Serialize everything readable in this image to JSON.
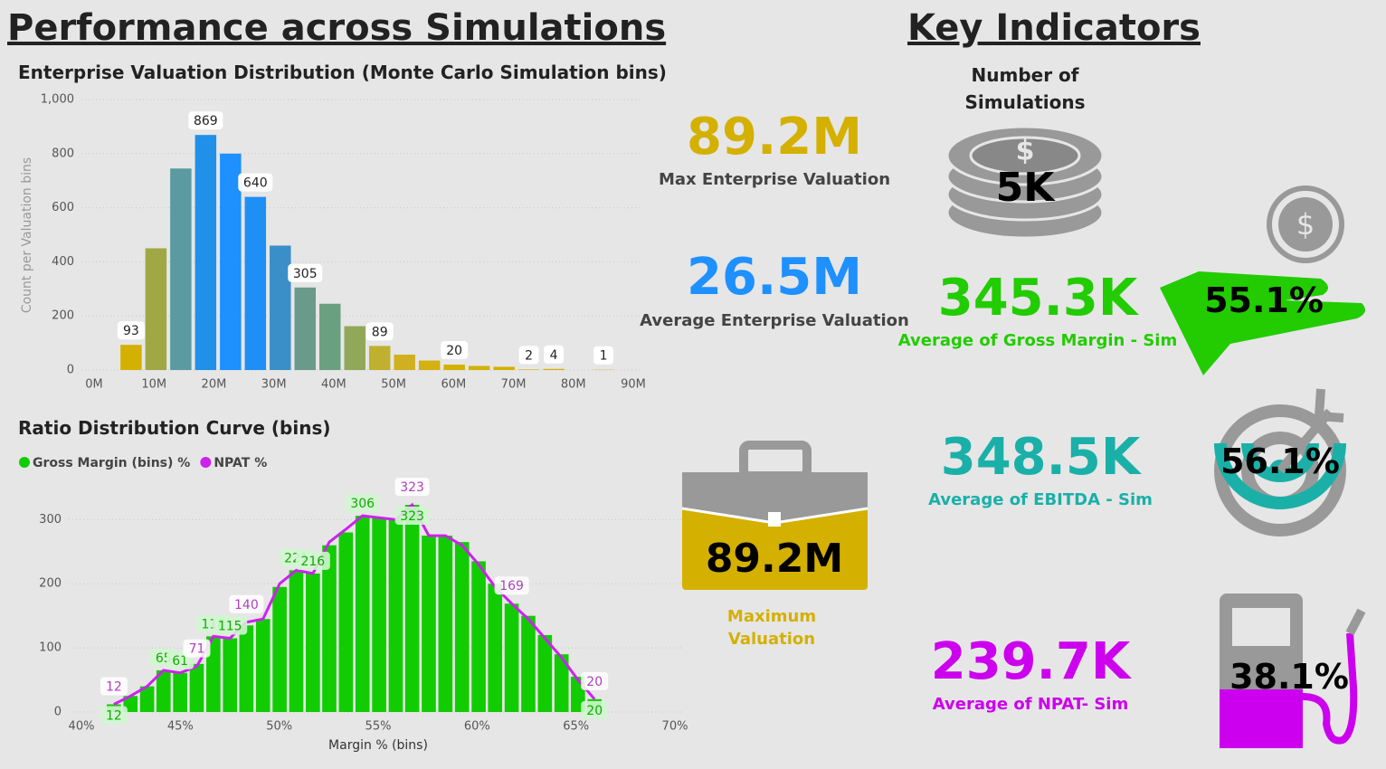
{
  "header": {
    "left_title": "Performance across Simulations",
    "right_title": "Key Indicators"
  },
  "kpis": {
    "max_ev": {
      "value": "89.2M",
      "label": "Max Enterprise Valuation"
    },
    "avg_ev": {
      "value": "26.5M",
      "label": "Average Enterprise Valuation"
    },
    "max_valuation": {
      "value": "89.2M",
      "label": "Maximum Valuation"
    },
    "simulations": {
      "label": "Number of Simulations",
      "value": "5K"
    },
    "gross_margin": {
      "value": "345.3K",
      "label": "Average of Gross Margin - Sim",
      "percent": "55.1%"
    },
    "ebitda": {
      "value": "348.5K",
      "label": "Average of EBITDA - Sim",
      "percent": "56.1%"
    },
    "npat": {
      "value": "239.7K",
      "label": "Average of NPAT- Sim",
      "percent": "38.1%"
    }
  },
  "chart_data": [
    {
      "type": "histogram",
      "title": "Enterprise Valuation Distribution (Monte Carlo Simulation bins)",
      "y_label": "Count per Valuation bins",
      "bins": [
        4.1,
        8.25,
        12.4,
        16.55,
        20.7,
        24.85,
        29,
        33.15,
        37.3,
        41.45,
        45.6,
        49.75,
        53.9,
        58.05,
        62.2,
        66.35,
        70.5,
        74.65,
        78.8,
        82.95,
        87.1
      ],
      "values": [
        93,
        450,
        745,
        869,
        800,
        640,
        460,
        305,
        245,
        162,
        89,
        57,
        35,
        20,
        15,
        12,
        2,
        4,
        0,
        1
      ],
      "value_labels": [
        "93",
        null,
        null,
        "869",
        null,
        "640",
        null,
        "305",
        null,
        null,
        "89",
        null,
        null,
        "20",
        null,
        null,
        "2",
        "4",
        null,
        "1"
      ],
      "colors": [
        "#d4b000",
        "#a0a845",
        "#5a9aa0",
        "#2090e8",
        "#1e90ff",
        "#1e8ff5",
        "#3a8fc8",
        "#6a9a8a",
        "#6aa080",
        "#90a858",
        "#c0b030",
        "#d0b020",
        "#d4b010",
        "#d4b000",
        "#d4b000",
        "#d4b000",
        "#d4b000",
        "#d4b000",
        "#d4b000",
        "#d4b000"
      ],
      "xlim": [
        0,
        90
      ],
      "xticks": [
        {
          "value": 0,
          "label": "0M"
        },
        {
          "value": 10,
          "label": "10M"
        },
        {
          "value": 20,
          "label": "20M"
        },
        {
          "value": 30,
          "label": "30M"
        },
        {
          "value": 40,
          "label": "40M"
        },
        {
          "value": 50,
          "label": "50M"
        },
        {
          "value": 60,
          "label": "60M"
        },
        {
          "value": 70,
          "label": "70M"
        },
        {
          "value": 80,
          "label": "80M"
        },
        {
          "value": 90,
          "label": "90M"
        }
      ],
      "ylim": [
        0,
        1000
      ],
      "yticks": [
        0,
        200,
        400,
        600,
        800,
        {
          "value": 1000,
          "label": "1,000"
        }
      ],
      "grid": true
    },
    {
      "type": "combo",
      "title": "Ratio Distribution Curve (bins)",
      "x_label": "Margin % (bins)",
      "x": [
        41.64,
        42.48,
        43.32,
        44.15,
        44.99,
        45.83,
        46.67,
        47.51,
        48.34,
        49.18,
        50.02,
        50.86,
        51.7,
        52.53,
        53.37,
        54.21,
        55.05,
        55.89,
        56.72,
        57.56,
        58.4,
        59.24,
        60.08,
        60.91,
        61.75,
        62.59,
        63.43,
        64.27,
        65.1,
        65.94
      ],
      "series": [
        {
          "name": "Gross Margin (bins) %",
          "color": "#11cc00",
          "kind": "bar",
          "values": [
            12,
            25,
            40,
            65,
            61,
            75,
            118,
            115,
            135,
            145,
            195,
            221,
            216,
            260,
            280,
            306,
            303,
            300,
            323,
            275,
            275,
            265,
            235,
            200,
            169,
            150,
            120,
            90,
            55,
            20
          ],
          "value_labels": [
            "12",
            null,
            null,
            "65",
            "61",
            null,
            "118",
            "115",
            null,
            null,
            null,
            "221",
            "216",
            null,
            null,
            "306",
            null,
            null,
            "323",
            null,
            null,
            null,
            null,
            null,
            null,
            null,
            null,
            null,
            null,
            "20"
          ]
        },
        {
          "name": "NPAT %",
          "color": "#cc22ee",
          "kind": "line",
          "values": [
            12,
            25,
            40,
            65,
            61,
            71,
            118,
            115,
            140,
            145,
            200,
            221,
            216,
            265,
            285,
            306,
            303,
            300,
            323,
            275,
            275,
            260,
            230,
            195,
            169,
            145,
            115,
            85,
            50,
            20
          ],
          "value_labels": [
            "12",
            null,
            null,
            null,
            null,
            "71",
            null,
            null,
            "140",
            null,
            null,
            null,
            null,
            null,
            null,
            null,
            null,
            null,
            "323",
            null,
            null,
            null,
            null,
            null,
            "169",
            null,
            null,
            null,
            null,
            "20"
          ]
        }
      ],
      "xlim": [
        40,
        70
      ],
      "xticks": [
        {
          "value": 40,
          "label": "40%"
        },
        {
          "value": 45,
          "label": "45%"
        },
        {
          "value": 50,
          "label": "50%"
        },
        {
          "value": 55,
          "label": "55%"
        },
        {
          "value": 60,
          "label": "60%"
        },
        {
          "value": 65,
          "label": "65%"
        },
        {
          "value": 70,
          "label": "70%"
        }
      ],
      "ylim": [
        0,
        340
      ],
      "yticks": [
        0,
        100,
        200,
        300
      ],
      "grid": true
    }
  ]
}
